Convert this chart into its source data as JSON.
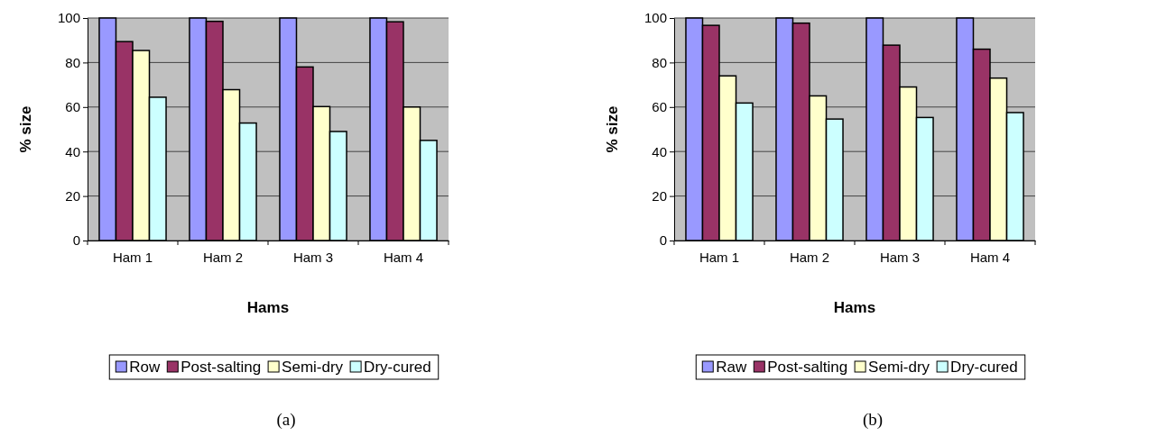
{
  "chart_data": [
    {
      "type": "bar",
      "categories": [
        "Ham 1",
        "Ham 2",
        "Ham 3",
        "Ham 4"
      ],
      "xlabel": "Hams",
      "ylabel": "% size",
      "ylim": [
        0,
        100
      ],
      "yticks": [
        0,
        20,
        40,
        60,
        80,
        100
      ],
      "grid": "y",
      "legend": "bottom",
      "annotations": [
        "(a)"
      ],
      "series": [
        {
          "name": "Row",
          "color": "#9999ff",
          "values": [
            100,
            100,
            100,
            100
          ]
        },
        {
          "name": "Post-salting",
          "color": "#993366",
          "values": [
            89.4,
            98.5,
            78,
            98.3
          ]
        },
        {
          "name": "Semi-dry",
          "color": "#ffffcc",
          "values": [
            85.4,
            67.8,
            60.2,
            60
          ]
        },
        {
          "name": "Dry-cured",
          "color": "#ccffff",
          "values": [
            64.4,
            52.8,
            49,
            45
          ]
        }
      ]
    },
    {
      "type": "bar",
      "categories": [
        "Ham 1",
        "Ham 2",
        "Ham 3",
        "Ham 4"
      ],
      "xlabel": "Hams",
      "ylabel": "% size",
      "ylim": [
        0,
        100
      ],
      "yticks": [
        0,
        20,
        40,
        60,
        80,
        100
      ],
      "grid": "y",
      "legend": "bottom",
      "annotations": [
        "(b)"
      ],
      "series": [
        {
          "name": "Raw",
          "color": "#9999ff",
          "values": [
            100,
            100,
            100,
            100
          ]
        },
        {
          "name": "Post-salting",
          "color": "#993366",
          "values": [
            96.7,
            97.7,
            87.8,
            86
          ]
        },
        {
          "name": "Semi-dry",
          "color": "#ffffcc",
          "values": [
            74,
            65,
            69,
            73
          ]
        },
        {
          "name": "Dry-cured",
          "color": "#ccffff",
          "values": [
            61.8,
            54.6,
            55.3,
            57.5
          ]
        }
      ]
    }
  ]
}
